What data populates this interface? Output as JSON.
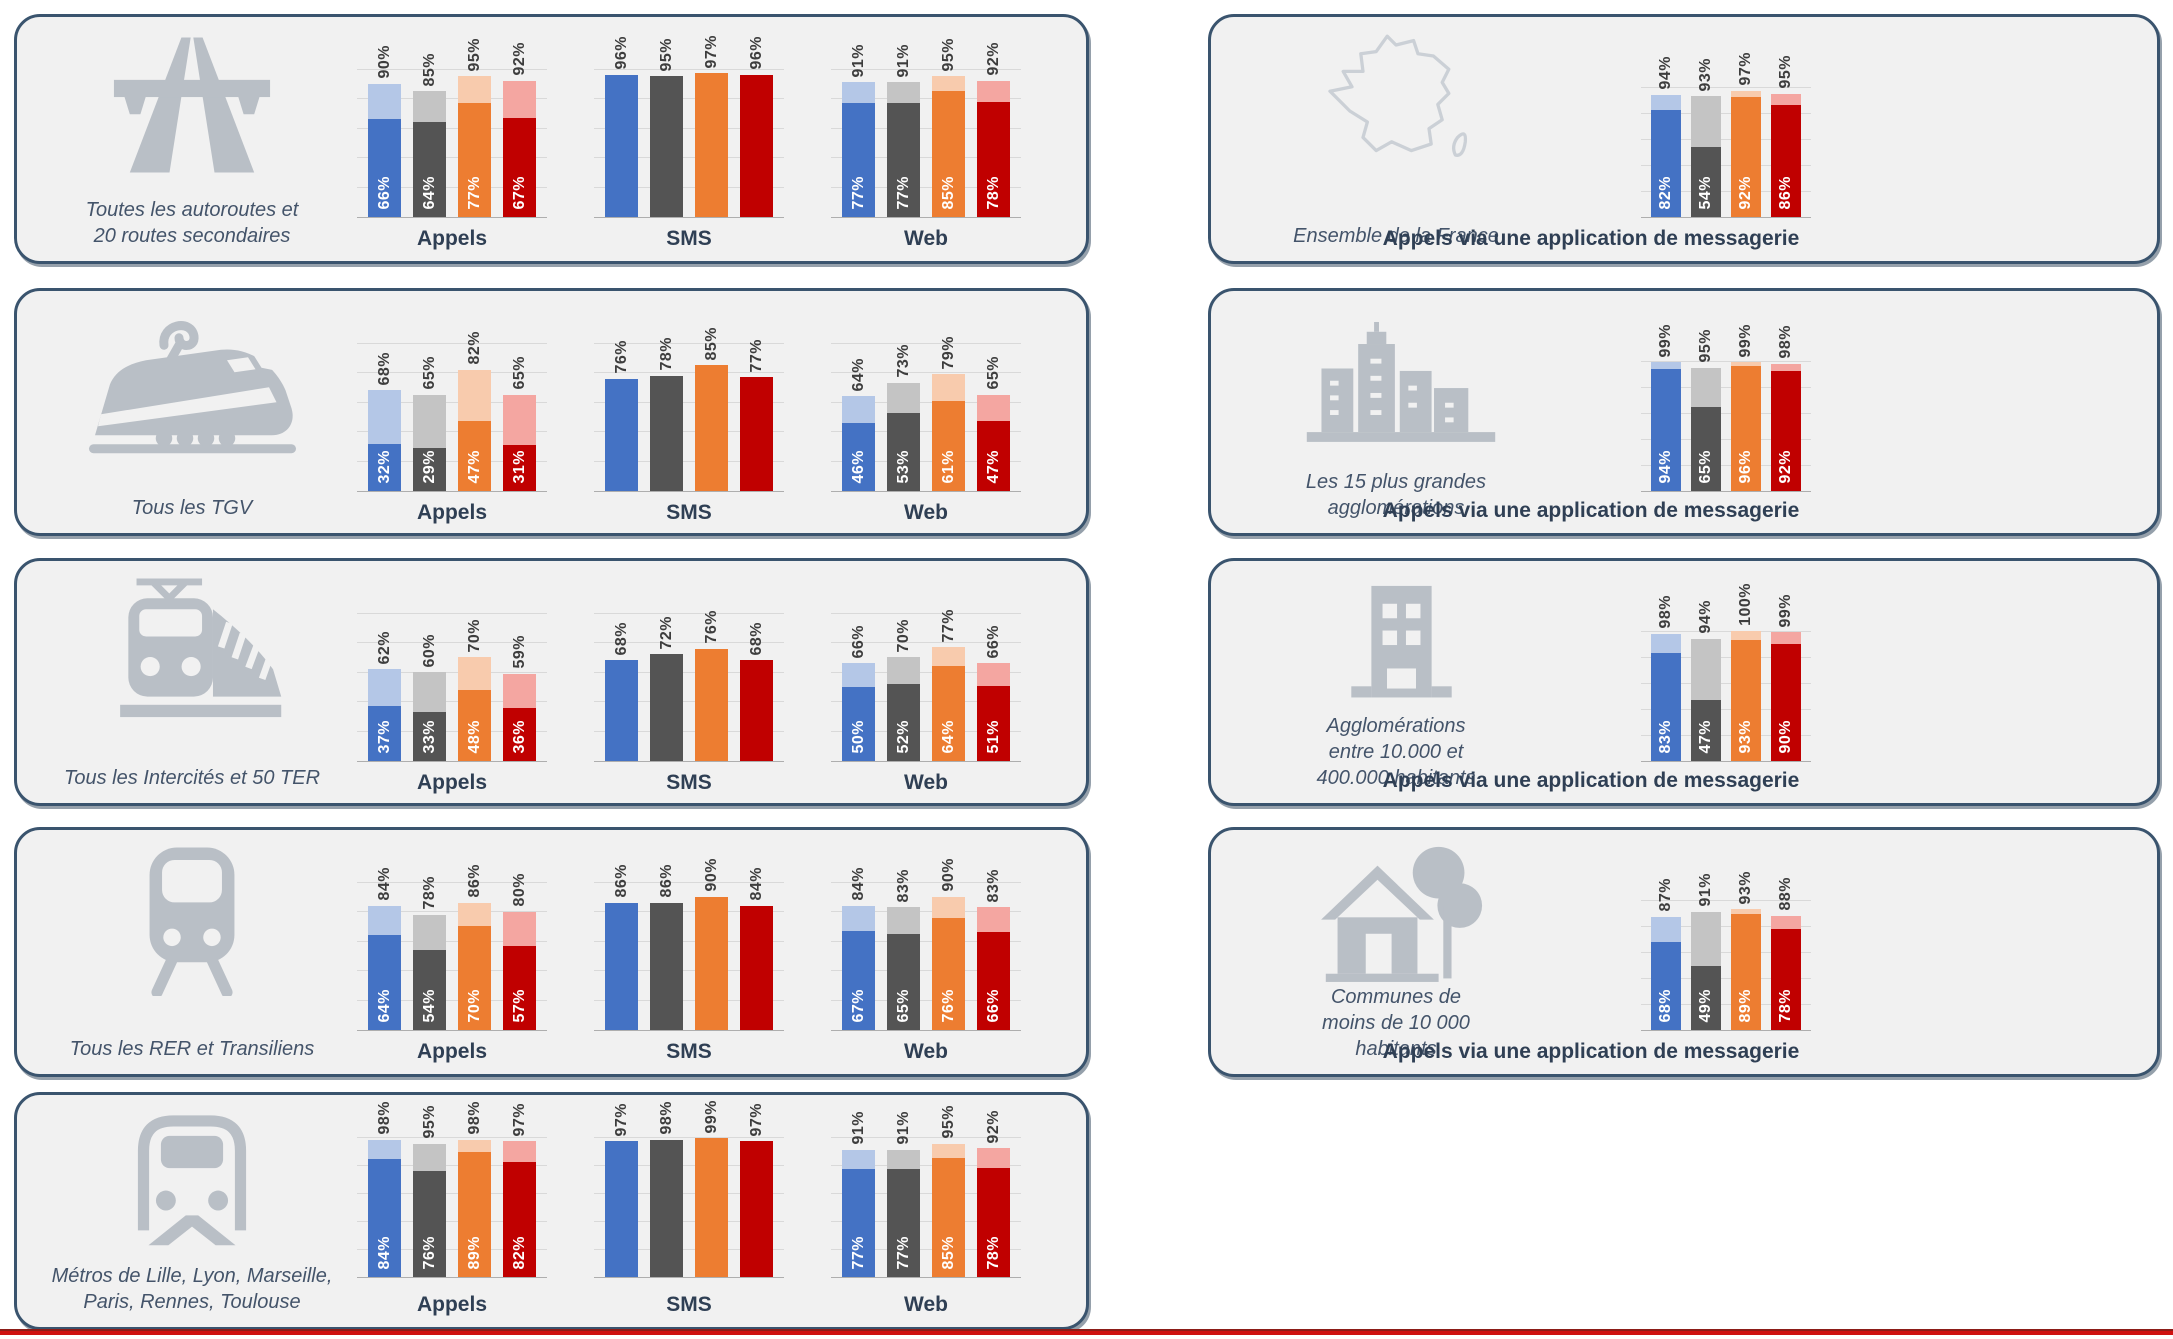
{
  "series_colors": {
    "blue": {
      "full": "#4472C4",
      "light": "#B4C7E7"
    },
    "gray": {
      "full": "#545454",
      "light": "#C4C4C4"
    },
    "orange": {
      "full": "#ED7D31",
      "light": "#F8CBAD"
    },
    "red": {
      "full": "#C00000",
      "light": "#F4A6A1"
    }
  },
  "footer": {
    "rule_color": "#C00000"
  },
  "chart_data": {
    "type": "bar",
    "unit": "%",
    "ylim": [
      0,
      100
    ],
    "gridlines": [
      0,
      20,
      40,
      60,
      80,
      100
    ],
    "legend": "none",
    "bar_order": [
      "blue",
      "gray",
      "orange",
      "red"
    ],
    "panels": [
      {
        "id": "autoroutes",
        "row": 0,
        "column": "left",
        "icon": "highway-icon",
        "caption": "Toutes les autoroutes et\n20 routes secondaires",
        "charts": [
          {
            "title": "Appels",
            "values_top": [
              90,
              85,
              95,
              92
            ],
            "values_inner": [
              66,
              64,
              77,
              67
            ]
          },
          {
            "title": "SMS",
            "values_top": [
              96,
              95,
              97,
              96
            ],
            "values_inner": null
          },
          {
            "title": "Web",
            "values_top": [
              91,
              91,
              95,
              92
            ],
            "values_inner": [
              77,
              77,
              85,
              78
            ]
          }
        ]
      },
      {
        "id": "tgv",
        "row": 1,
        "column": "left",
        "icon": "tgv-icon",
        "caption": "Tous les TGV",
        "charts": [
          {
            "title": "Appels",
            "values_top": [
              68,
              65,
              82,
              65
            ],
            "values_inner": [
              32,
              29,
              47,
              31
            ]
          },
          {
            "title": "SMS",
            "values_top": [
              76,
              78,
              85,
              77
            ],
            "values_inner": null
          },
          {
            "title": "Web",
            "values_top": [
              64,
              73,
              79,
              65
            ],
            "values_inner": [
              46,
              53,
              61,
              47
            ]
          }
        ]
      },
      {
        "id": "intercites",
        "row": 2,
        "column": "left",
        "icon": "intercity-train-icon",
        "caption": "Tous les Intercités et 50 TER",
        "charts": [
          {
            "title": "Appels",
            "values_top": [
              62,
              60,
              70,
              59
            ],
            "values_inner": [
              37,
              33,
              48,
              36
            ]
          },
          {
            "title": "SMS",
            "values_top": [
              68,
              72,
              76,
              68
            ],
            "values_inner": null
          },
          {
            "title": "Web",
            "values_top": [
              66,
              70,
              77,
              66
            ],
            "values_inner": [
              50,
              52,
              64,
              51
            ]
          }
        ]
      },
      {
        "id": "rer",
        "row": 3,
        "column": "left",
        "icon": "rer-train-icon",
        "caption": "Tous les RER et Transiliens",
        "charts": [
          {
            "title": "Appels",
            "values_top": [
              84,
              78,
              86,
              80
            ],
            "values_inner": [
              64,
              54,
              70,
              57
            ]
          },
          {
            "title": "SMS",
            "values_top": [
              86,
              86,
              90,
              84
            ],
            "values_inner": null
          },
          {
            "title": "Web",
            "values_top": [
              84,
              83,
              90,
              83
            ],
            "values_inner": [
              67,
              65,
              76,
              66
            ]
          }
        ]
      },
      {
        "id": "metros",
        "row": 4,
        "column": "left",
        "icon": "metro-icon",
        "caption": "Métros de Lille, Lyon, Marseille,\nParis, Rennes, Toulouse",
        "charts": [
          {
            "title": "Appels",
            "values_top": [
              98,
              95,
              98,
              97
            ],
            "values_inner": [
              84,
              76,
              89,
              82
            ]
          },
          {
            "title": "SMS",
            "values_top": [
              97,
              98,
              99,
              97
            ],
            "values_inner": null
          },
          {
            "title": "Web",
            "values_top": [
              91,
              91,
              95,
              92
            ],
            "values_inner": [
              77,
              77,
              85,
              78
            ]
          }
        ]
      },
      {
        "id": "france",
        "row": 0,
        "column": "right",
        "icon": "france-map-icon",
        "caption": "Ensemble de la France",
        "charts": [
          {
            "title": "Appels via une application de messagerie",
            "values_top": [
              94,
              93,
              97,
              95
            ],
            "values_inner": [
              82,
              54,
              92,
              86
            ]
          }
        ]
      },
      {
        "id": "grandes-agglomerations",
        "row": 1,
        "column": "right",
        "icon": "city-icon",
        "caption": "Les 15 plus grandes\nagglomérations",
        "charts": [
          {
            "title": "Appels via une application de messagerie",
            "values_top": [
              99,
              95,
              99,
              98
            ],
            "values_inner": [
              94,
              65,
              96,
              92
            ]
          }
        ]
      },
      {
        "id": "agglomerations-10k-400k",
        "row": 2,
        "column": "right",
        "icon": "building-icon",
        "caption": "Agglomérations\nentre 10.000 et\n400.000 habitants",
        "charts": [
          {
            "title": "Appels via une application de messagerie",
            "values_top": [
              98,
              94,
              100,
              99
            ],
            "values_inner": [
              83,
              47,
              93,
              90
            ]
          }
        ]
      },
      {
        "id": "communes",
        "row": 3,
        "column": "right",
        "icon": "house-tree-icon",
        "caption": "Communes de\nmoins de 10 000\nhabitants",
        "charts": [
          {
            "title": "Appels via une application de messagerie",
            "values_top": [
              87,
              91,
              93,
              88
            ],
            "values_inner": [
              68,
              49,
              89,
              78
            ]
          }
        ]
      }
    ]
  }
}
